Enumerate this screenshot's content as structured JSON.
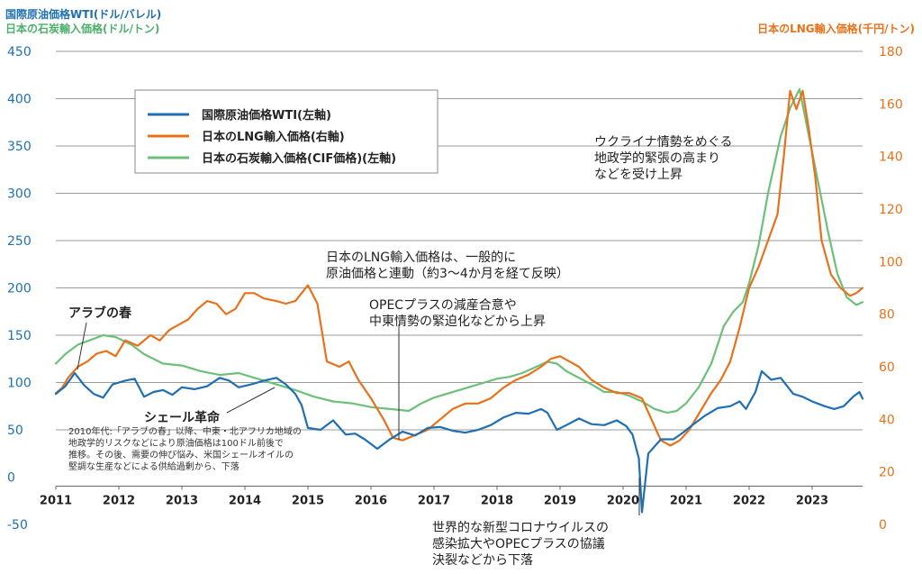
{
  "chart_data": {
    "type": "line",
    "headers": {
      "left_title_1": "国際原油価格WTI(ドル/バレル)",
      "left_title_2": "日本の石炭輸入価格(ドル/トン)",
      "right_title": "日本のLNG輸入価格(千円/トン)"
    },
    "left_axis": {
      "ticks": [
        450,
        400,
        350,
        300,
        250,
        200,
        150,
        100,
        50,
        0,
        -50
      ],
      "ylim": [
        -50,
        450
      ]
    },
    "right_axis": {
      "ticks": [
        180,
        160,
        140,
        120,
        100,
        80,
        60,
        40,
        20,
        0
      ],
      "ylim": [
        0,
        180
      ]
    },
    "x_ticks": [
      "2011",
      "2012",
      "2013",
      "2014",
      "2015",
      "2016",
      "2017",
      "2018",
      "2019",
      "2020",
      "2021",
      "2022",
      "2023"
    ],
    "x_range": [
      2011.0,
      2023.8
    ],
    "legend": [
      {
        "label": "国際原油価格WTI(左軸)",
        "color": "#1f6fb3"
      },
      {
        "label": "日本のLNG輸入価格(右軸)",
        "color": "#e8711a"
      },
      {
        "label": "日本の石炭輸入価格(CIF価格)(左軸)",
        "color": "#6cc07a"
      }
    ],
    "series": [
      {
        "name": "国際原油価格WTI(左軸)",
        "axis": "left",
        "color": "#1f6fb3",
        "x": [
          2011.0,
          2011.15,
          2011.3,
          2011.45,
          2011.6,
          2011.75,
          2011.9,
          2012.1,
          2012.25,
          2012.4,
          2012.55,
          2012.7,
          2012.85,
          2013.0,
          2013.2,
          2013.4,
          2013.6,
          2013.75,
          2013.9,
          2014.1,
          2014.3,
          2014.5,
          2014.65,
          2014.8,
          2014.9,
          2015.0,
          2015.2,
          2015.4,
          2015.6,
          2015.75,
          2015.9,
          2016.0,
          2016.1,
          2016.3,
          2016.5,
          2016.7,
          2016.9,
          2017.1,
          2017.3,
          2017.5,
          2017.7,
          2017.9,
          2018.1,
          2018.3,
          2018.5,
          2018.7,
          2018.8,
          2018.95,
          2019.1,
          2019.3,
          2019.5,
          2019.7,
          2019.9,
          2020.05,
          2020.15,
          2020.25,
          2020.3,
          2020.4,
          2020.6,
          2020.8,
          2020.95,
          2021.1,
          2021.3,
          2021.5,
          2021.7,
          2021.85,
          2021.95,
          2022.1,
          2022.2,
          2022.35,
          2022.5,
          2022.7,
          2022.85,
          2023.0,
          2023.2,
          2023.35,
          2023.5,
          2023.65,
          2023.75,
          2023.8
        ],
        "values": [
          88,
          96,
          110,
          97,
          88,
          84,
          98,
          102,
          104,
          85,
          90,
          92,
          87,
          95,
          93,
          96,
          105,
          102,
          95,
          98,
          102,
          105,
          98,
          88,
          76,
          52,
          50,
          60,
          45,
          46,
          40,
          35,
          30,
          40,
          48,
          44,
          52,
          53,
          49,
          47,
          50,
          55,
          63,
          68,
          67,
          72,
          68,
          50,
          55,
          62,
          56,
          55,
          60,
          54,
          45,
          20,
          -37,
          25,
          40,
          40,
          47,
          55,
          65,
          73,
          75,
          80,
          72,
          90,
          112,
          103,
          105,
          88,
          85,
          80,
          75,
          72,
          75,
          85,
          90,
          83
        ]
      },
      {
        "name": "日本のLNG輸入価格(右軸)",
        "axis": "right",
        "color": "#e8711a",
        "x": [
          2011.0,
          2011.1,
          2011.2,
          2011.35,
          2011.5,
          2011.65,
          2011.8,
          2011.95,
          2012.1,
          2012.3,
          2012.5,
          2012.65,
          2012.8,
          2012.95,
          2013.1,
          2013.25,
          2013.4,
          2013.55,
          2013.7,
          2013.85,
          2014.0,
          2014.15,
          2014.3,
          2014.5,
          2014.65,
          2014.8,
          2014.9,
          2015.0,
          2015.15,
          2015.3,
          2015.5,
          2015.65,
          2015.8,
          2016.0,
          2016.2,
          2016.35,
          2016.5,
          2016.7,
          2016.9,
          2017.1,
          2017.3,
          2017.5,
          2017.7,
          2017.9,
          2018.1,
          2018.3,
          2018.5,
          2018.7,
          2018.85,
          2019.0,
          2019.15,
          2019.3,
          2019.5,
          2019.7,
          2019.9,
          2020.1,
          2020.3,
          2020.45,
          2020.6,
          2020.75,
          2020.9,
          2021.05,
          2021.2,
          2021.4,
          2021.55,
          2021.7,
          2021.85,
          2022.0,
          2022.15,
          2022.3,
          2022.45,
          2022.55,
          2022.65,
          2022.75,
          2022.85,
          2022.95,
          2023.05,
          2023.15,
          2023.3,
          2023.45,
          2023.6,
          2023.7,
          2023.8
        ],
        "values": [
          50,
          52,
          56,
          60,
          62,
          65,
          66,
          64,
          70,
          68,
          72,
          70,
          74,
          76,
          78,
          82,
          85,
          84,
          80,
          82,
          88,
          88,
          86,
          85,
          84,
          85,
          88,
          91,
          84,
          62,
          60,
          62,
          55,
          48,
          40,
          33,
          32,
          34,
          36,
          40,
          44,
          46,
          46,
          48,
          52,
          55,
          57,
          60,
          63,
          64,
          62,
          60,
          55,
          52,
          50,
          50,
          48,
          40,
          32,
          30,
          32,
          36,
          42,
          50,
          55,
          62,
          75,
          90,
          98,
          108,
          118,
          140,
          165,
          158,
          165,
          150,
          132,
          108,
          95,
          90,
          87,
          88,
          90
        ]
      },
      {
        "name": "日本の石炭輸入価格(CIF価格)(左軸)",
        "axis": "left",
        "color": "#6cc07a",
        "x": [
          2011.0,
          2011.15,
          2011.35,
          2011.55,
          2011.75,
          2011.95,
          2012.2,
          2012.4,
          2012.7,
          2013.0,
          2013.3,
          2013.6,
          2013.9,
          2014.2,
          2014.5,
          2014.8,
          2015.1,
          2015.4,
          2015.7,
          2016.0,
          2016.3,
          2016.6,
          2016.8,
          2017.0,
          2017.2,
          2017.4,
          2017.6,
          2017.8,
          2018.0,
          2018.2,
          2018.4,
          2018.6,
          2018.8,
          2018.95,
          2019.1,
          2019.3,
          2019.5,
          2019.7,
          2019.9,
          2020.1,
          2020.3,
          2020.5,
          2020.7,
          2020.85,
          2021.0,
          2021.2,
          2021.4,
          2021.6,
          2021.75,
          2021.9,
          2022.0,
          2022.15,
          2022.3,
          2022.5,
          2022.65,
          2022.8,
          2022.95,
          2023.1,
          2023.25,
          2023.4,
          2023.55,
          2023.7,
          2023.8
        ],
        "values": [
          120,
          130,
          140,
          145,
          150,
          148,
          140,
          130,
          120,
          118,
          112,
          108,
          110,
          104,
          98,
          92,
          85,
          80,
          78,
          74,
          72,
          70,
          78,
          84,
          88,
          92,
          96,
          100,
          104,
          106,
          110,
          116,
          122,
          120,
          112,
          105,
          98,
          90,
          90,
          86,
          80,
          72,
          68,
          70,
          78,
          95,
          120,
          160,
          175,
          185,
          205,
          245,
          300,
          360,
          390,
          410,
          360,
          310,
          260,
          215,
          190,
          182,
          185
        ]
      }
    ],
    "annotations": {
      "arab_spring": "アラブの春",
      "shale": "シェール革命",
      "shale_note": [
        "2010年代:「アラブの春」以降、中東・北アフリカ地域の",
        "地政学的リスクなどにより原油価格は100ドル前後で",
        "推移。その後、需要の伸び悩み、米国シェールオイルの",
        "堅調な生産などによる供給過剰から、下落"
      ],
      "lng_link": [
        "日本のLNG輸入価格は、一般的に",
        "原油価格と連動（約3～4か月を経て反映）"
      ],
      "opec_cut": [
        "OPECプラスの減産合意や",
        "中東情勢の緊迫化などから上昇"
      ],
      "ukraine": [
        "ウクライナ情勢をめぐる",
        "地政学的緊張の高まり",
        "などを受け上昇"
      ],
      "covid": [
        "世界的な新型コロナウイルスの",
        "感染拡大やOPECプラスの協議",
        "決裂などから下落"
      ]
    }
  }
}
